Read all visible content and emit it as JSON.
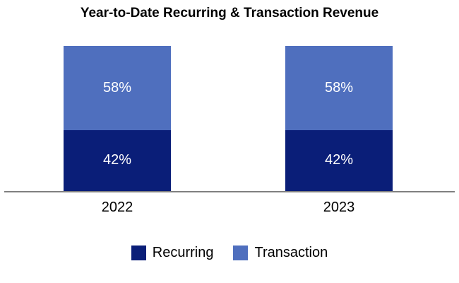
{
  "title": "Year-to-Date Recurring & Transaction Revenue",
  "chart_data": {
    "type": "bar",
    "stacked": true,
    "title": "Year-to-Date Recurring & Transaction Revenue",
    "categories": [
      "2022",
      "2023"
    ],
    "series": [
      {
        "name": "Recurring",
        "values": [
          42,
          42
        ],
        "labels": [
          "42%",
          "42%"
        ],
        "color": "#0A1E78"
      },
      {
        "name": "Transaction",
        "values": [
          58,
          58
        ],
        "labels": [
          "58%",
          "58%"
        ],
        "color": "#4F6FBE"
      }
    ],
    "ylim": [
      0,
      100
    ],
    "xlabel": "",
    "ylabel": "",
    "grid": false,
    "legend_position": "bottom",
    "axis_line_color": "#808080"
  }
}
